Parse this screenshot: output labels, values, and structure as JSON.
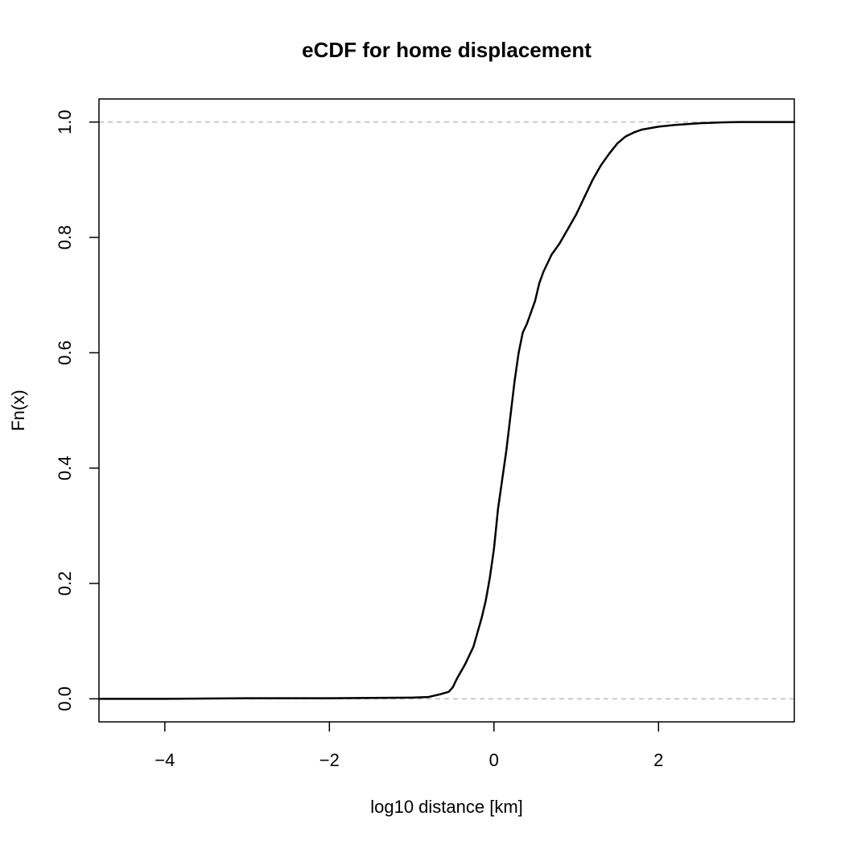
{
  "chart_data": {
    "type": "line",
    "title": "eCDF for home displacement",
    "xlabel": "log10 distance [km]",
    "ylabel": "Fn(x)",
    "xlim": [
      -4.8,
      3.65
    ],
    "ylim": [
      -0.04,
      1.04
    ],
    "x_ticks": [
      {
        "value": -4,
        "label": "−4"
      },
      {
        "value": -2,
        "label": "−2"
      },
      {
        "value": 0,
        "label": "0"
      },
      {
        "value": 2,
        "label": "2"
      }
    ],
    "y_ticks": [
      {
        "value": 0.0,
        "label": "0.0"
      },
      {
        "value": 0.2,
        "label": "0.2"
      },
      {
        "value": 0.4,
        "label": "0.4"
      },
      {
        "value": 0.6,
        "label": "0.6"
      },
      {
        "value": 0.8,
        "label": "0.8"
      },
      {
        "value": 1.0,
        "label": "1.0"
      }
    ],
    "reference_lines": [
      0,
      1
    ],
    "grid": false,
    "colors": {
      "line": "#000000",
      "reference": "#bbbbbb",
      "frame": "#000000"
    },
    "series": [
      {
        "x": [
          -4.8,
          -4.0,
          -3.0,
          -2.0,
          -1.5,
          -1.0,
          -0.8,
          -0.65,
          -0.55,
          -0.5,
          -0.45,
          -0.35,
          -0.25,
          -0.15,
          -0.1,
          -0.05,
          0.0,
          0.05,
          0.1,
          0.15,
          0.2,
          0.25,
          0.3,
          0.35,
          0.4,
          0.5,
          0.55,
          0.6,
          0.7,
          0.8,
          0.9,
          1.0,
          1.1,
          1.2,
          1.3,
          1.4,
          1.5,
          1.6,
          1.7,
          1.8,
          2.0,
          2.2,
          2.5,
          2.8,
          3.0,
          3.65
        ],
        "y": [
          0.0,
          0.0,
          0.001,
          0.001,
          0.0015,
          0.002,
          0.003,
          0.008,
          0.012,
          0.02,
          0.035,
          0.06,
          0.09,
          0.14,
          0.17,
          0.21,
          0.26,
          0.33,
          0.38,
          0.43,
          0.49,
          0.55,
          0.6,
          0.635,
          0.65,
          0.69,
          0.72,
          0.74,
          0.77,
          0.79,
          0.815,
          0.84,
          0.87,
          0.9,
          0.925,
          0.945,
          0.963,
          0.975,
          0.982,
          0.987,
          0.992,
          0.995,
          0.998,
          0.9995,
          1.0,
          1.0
        ]
      }
    ]
  }
}
